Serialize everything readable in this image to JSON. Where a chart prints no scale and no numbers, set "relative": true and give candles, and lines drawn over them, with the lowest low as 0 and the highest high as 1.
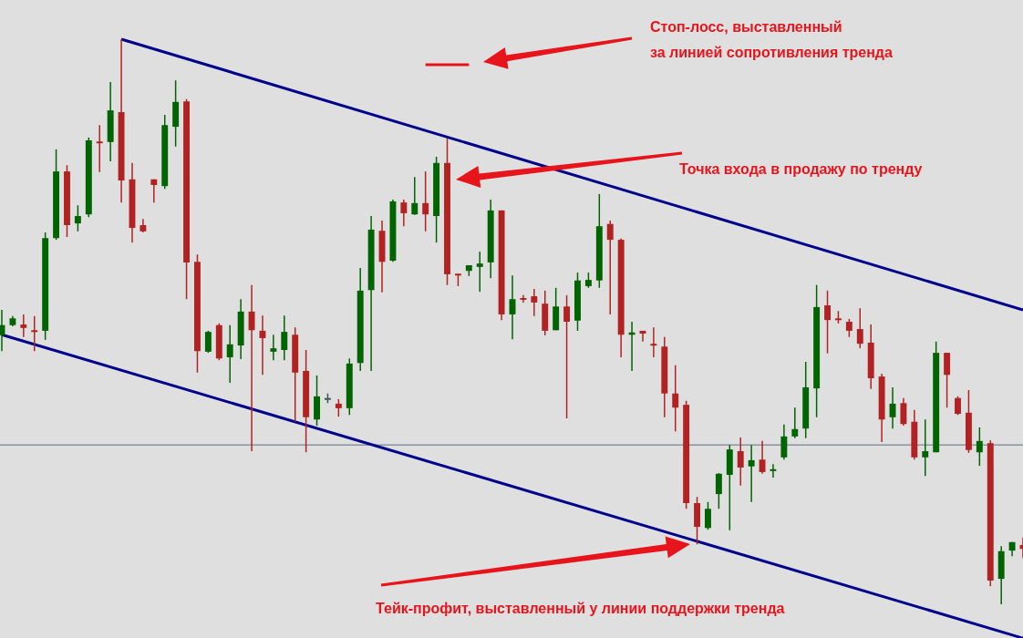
{
  "chart_data": {
    "type": "candlestick",
    "relative": true,
    "legend": false,
    "marker": "none",
    "categories": [
      null,
      null,
      null,
      null,
      null,
      null,
      null,
      null,
      null,
      null,
      null,
      null,
      null,
      null,
      null,
      null,
      null,
      null,
      null,
      null,
      null,
      null,
      null,
      null,
      null,
      null,
      null,
      null,
      null,
      null,
      null,
      null,
      null,
      null,
      null,
      null,
      null,
      null,
      null,
      null,
      null,
      null,
      null,
      null,
      null,
      null,
      null,
      null,
      null,
      null,
      null,
      null,
      null,
      null,
      null,
      null,
      null,
      null,
      null,
      null,
      null,
      null,
      null,
      null,
      null,
      null,
      null,
      null,
      null,
      null,
      null,
      null,
      null,
      null,
      null,
      null,
      null,
      null,
      null,
      null,
      null,
      null,
      null,
      null,
      null,
      null,
      null,
      null,
      null,
      null,
      null,
      null,
      null,
      null,
      null
    ],
    "ohlc": [
      [
        0.476,
        0.521,
        0.448,
        0.494
      ],
      [
        0.494,
        0.51,
        0.492,
        0.506
      ],
      [
        0.495,
        0.513,
        0.473,
        0.489
      ],
      [
        0.485,
        0.51,
        0.448,
        0.482
      ],
      [
        0.484,
        0.658,
        0.468,
        0.648
      ],
      [
        0.648,
        0.805,
        0.645,
        0.766
      ],
      [
        0.766,
        0.777,
        0.65,
        0.671
      ],
      [
        0.674,
        0.706,
        0.66,
        0.687
      ],
      [
        0.69,
        0.826,
        0.685,
        0.821
      ],
      [
        0.819,
        0.848,
        0.765,
        0.816
      ],
      [
        0.818,
        0.924,
        0.784,
        0.874
      ],
      [
        0.871,
        1,
        0.711,
        0.75
      ],
      [
        0.752,
        0.781,
        0.64,
        0.666
      ],
      [
        0.671,
        0.682,
        0.658,
        0.66
      ],
      [
        0.752,
        0.752,
        0.711,
        0.742
      ],
      [
        0.74,
        0.866,
        0.735,
        0.848
      ],
      [
        0.845,
        0.927,
        0.81,
        0.889
      ],
      [
        0.89,
        0.894,
        0.54,
        0.605
      ],
      [
        0.606,
        0.619,
        0.41,
        0.448
      ],
      [
        0.447,
        0.484,
        0.445,
        0.482
      ],
      [
        0.494,
        0.497,
        0.432,
        0.435
      ],
      [
        0.437,
        0.494,
        0.392,
        0.46
      ],
      [
        0.458,
        0.54,
        0.434,
        0.518
      ],
      [
        0.518,
        0.565,
        0.271,
        0.485
      ],
      [
        0.484,
        0.511,
        0.406,
        0.471
      ],
      [
        0.447,
        0.477,
        0.432,
        0.453
      ],
      [
        0.45,
        0.511,
        0.432,
        0.482
      ],
      [
        0.477,
        0.49,
        0.323,
        0.41
      ],
      [
        0.413,
        0.45,
        0.269,
        0.331
      ],
      [
        0.327,
        0.405,
        0.316,
        0.368
      ],
      [
        0.363,
        0.373,
        0.356,
        0.365
      ],
      [
        0.355,
        0.363,
        0.332,
        0.347
      ],
      [
        0.347,
        0.435,
        0.335,
        0.426
      ],
      [
        0.427,
        0.595,
        0.413,
        0.555
      ],
      [
        0.556,
        0.687,
        0.413,
        0.663
      ],
      [
        0.661,
        0.679,
        0.552,
        0.606
      ],
      [
        0.608,
        0.716,
        0.606,
        0.713
      ],
      [
        0.711,
        0.716,
        0.669,
        0.692
      ],
      [
        0.69,
        0.756,
        0.689,
        0.71
      ],
      [
        0.71,
        0.766,
        0.66,
        0.69
      ],
      [
        0.687,
        0.792,
        0.64,
        0.781
      ],
      [
        0.781,
        0.824,
        0.565,
        0.584
      ],
      [
        0.585,
        0.585,
        0.563,
        0.582
      ],
      [
        0.59,
        0.6,
        0.581,
        0.6
      ],
      [
        0.597,
        0.624,
        0.553,
        0.603
      ],
      [
        0.605,
        0.716,
        0.577,
        0.697
      ],
      [
        0.697,
        0.697,
        0.503,
        0.513
      ],
      [
        0.513,
        0.582,
        0.469,
        0.54
      ],
      [
        0.542,
        0.547,
        0.534,
        0.539
      ],
      [
        0.545,
        0.558,
        0.51,
        0.534
      ],
      [
        0.532,
        0.555,
        0.476,
        0.484
      ],
      [
        0.485,
        0.56,
        0.485,
        0.527
      ],
      [
        0.527,
        0.547,
        0.329,
        0.5
      ],
      [
        0.502,
        0.587,
        0.484,
        0.573
      ],
      [
        0.563,
        0.587,
        0.56,
        0.574
      ],
      [
        0.573,
        0.726,
        0.56,
        0.669
      ],
      [
        0.673,
        0.679,
        0.513,
        0.645
      ],
      [
        0.645,
        0.647,
        0.437,
        0.477
      ],
      [
        0.477,
        0.5,
        0.413,
        0.481
      ],
      [
        0.484,
        0.484,
        0.465,
        0.479
      ],
      [
        0.461,
        0.49,
        0.437,
        0.458
      ],
      [
        0.456,
        0.473,
        0.331,
        0.373
      ],
      [
        0.373,
        0.423,
        0.306,
        0.348
      ],
      [
        0.353,
        0.36,
        0.169,
        0.179
      ],
      [
        0.179,
        0.19,
        0.106,
        0.137
      ],
      [
        0.135,
        0.181,
        0.132,
        0.169
      ],
      [
        0.195,
        0.232,
        0.169,
        0.231
      ],
      [
        0.229,
        0.282,
        0.131,
        0.274
      ],
      [
        0.271,
        0.295,
        0.21,
        0.242
      ],
      [
        0.244,
        0.282,
        0.181,
        0.255
      ],
      [
        0.256,
        0.289,
        0.231,
        0.234
      ],
      [
        0.237,
        0.248,
        0.224,
        0.239
      ],
      [
        0.26,
        0.318,
        0.256,
        0.297
      ],
      [
        0.297,
        0.348,
        0.294,
        0.31
      ],
      [
        0.311,
        0.429,
        0.294,
        0.384
      ],
      [
        0.382,
        0.565,
        0.331,
        0.526
      ],
      [
        0.529,
        0.555,
        0.444,
        0.503
      ],
      [
        0.506,
        0.519,
        0.497,
        0.503
      ],
      [
        0.5,
        0.505,
        0.473,
        0.484
      ],
      [
        0.487,
        0.524,
        0.453,
        0.461
      ],
      [
        0.463,
        0.495,
        0.381,
        0.4
      ],
      [
        0.403,
        0.408,
        0.287,
        0.327
      ],
      [
        0.331,
        0.384,
        0.311,
        0.355
      ],
      [
        0.356,
        0.365,
        0.316,
        0.319
      ],
      [
        0.323,
        0.344,
        0.256,
        0.26
      ],
      [
        0.26,
        0.327,
        0.227,
        0.271
      ],
      [
        0.269,
        0.465,
        0.269,
        0.445
      ],
      [
        0.445,
        0.445,
        0.348,
        0.406
      ],
      [
        0.365,
        0.368,
        0.335,
        0.337
      ],
      [
        0.339,
        0.379,
        0.268,
        0.273
      ],
      [
        0.269,
        0.313,
        0.245,
        0.289
      ],
      [
        0.285,
        0.29,
        0.032,
        0.042
      ],
      [
        0.045,
        0.103,
        0,
        0.094
      ],
      [
        0.095,
        0.11,
        0.085,
        0.11
      ],
      [
        0.105,
        0.118,
        0.082,
        0.098
      ]
    ],
    "colors": [
      "#006400",
      "#006400",
      "#b22222",
      "#b22222",
      "#006400",
      "#006400",
      "#b22222",
      "#006400",
      "#006400",
      "#b22222",
      "#006400",
      "#b22222",
      "#b22222",
      "#b22222",
      "#b22222",
      "#006400",
      "#006400",
      "#b22222",
      "#b22222",
      "#006400",
      "#b22222",
      "#006400",
      "#006400",
      "#b22222",
      "#b22222",
      "#006400",
      "#006400",
      "#b22222",
      "#b22222",
      "#006400",
      "#44545a",
      "#b22222",
      "#006400",
      "#006400",
      "#006400",
      "#b22222",
      "#006400",
      "#b22222",
      "#006400",
      "#b22222",
      "#006400",
      "#b22222",
      "#b22222",
      "#006400",
      "#006400",
      "#006400",
      "#b22222",
      "#006400",
      "#b22222",
      "#b22222",
      "#b22222",
      "#006400",
      "#b22222",
      "#006400",
      "#006400",
      "#006400",
      "#b22222",
      "#b22222",
      "#006400",
      "#b22222",
      "#b22222",
      "#b22222",
      "#b22222",
      "#b22222",
      "#b22222",
      "#006400",
      "#006400",
      "#006400",
      "#b22222",
      "#006400",
      "#b22222",
      "#006400",
      "#006400",
      "#006400",
      "#006400",
      "#006400",
      "#b22222",
      "#b22222",
      "#b22222",
      "#b22222",
      "#b22222",
      "#b22222",
      "#006400",
      "#b22222",
      "#b22222",
      "#006400",
      "#006400",
      "#b22222",
      "#b22222",
      "#b22222",
      "#006400",
      "#b22222",
      "#006400",
      "#006400",
      "#b22222"
    ],
    "series": [
      {
        "type": "line",
        "color": "#00008b",
        "values": [
          null,
          null,
          null,
          null,
          null,
          null,
          null,
          null,
          null,
          null,
          null,
          1,
          null,
          null,
          null,
          null,
          null,
          null,
          null,
          null,
          null,
          null,
          null,
          null,
          null,
          null,
          null,
          null,
          null,
          null,
          null,
          null,
          null,
          null,
          null,
          null,
          null,
          null,
          null,
          null,
          null,
          null,
          null,
          null,
          null,
          null,
          null,
          null,
          null,
          null,
          null,
          null,
          null,
          null,
          null,
          null,
          null,
          null,
          null,
          null,
          null,
          null,
          null,
          null,
          null,
          null,
          null,
          null,
          null,
          null,
          null,
          null,
          null,
          null,
          null,
          null,
          null,
          null,
          null,
          null,
          null,
          null,
          null,
          null,
          null,
          null,
          null,
          null,
          null,
          null,
          null,
          null,
          null,
          null,
          0.521
        ]
      },
      {
        "type": "line",
        "color": "#00008b",
        "values": [
          0.477,
          null,
          null,
          null,
          null,
          null,
          null,
          null,
          null,
          null,
          null,
          null,
          null,
          null,
          null,
          null,
          null,
          null,
          null,
          null,
          null,
          null,
          null,
          null,
          null,
          null,
          null,
          null,
          null,
          null,
          null,
          null,
          null,
          null,
          null,
          null,
          null,
          null,
          null,
          null,
          null,
          null,
          null,
          null,
          null,
          null,
          null,
          null,
          null,
          null,
          null,
          null,
          null,
          null,
          null,
          null,
          null,
          null,
          null,
          null,
          null,
          null,
          null,
          null,
          null,
          null,
          null,
          null,
          null,
          null,
          null,
          null,
          null,
          null,
          null,
          null,
          null,
          null,
          null,
          null,
          null,
          null,
          null,
          null,
          null,
          null,
          null,
          null,
          null,
          null,
          null,
          null,
          null,
          null,
          -0.06
        ]
      },
      {
        "type": "line",
        "color": "#e8141c",
        "values": [
          null,
          null,
          null,
          null,
          null,
          null,
          null,
          null,
          null,
          null,
          null,
          null,
          null,
          null,
          null,
          null,
          null,
          null,
          null,
          null,
          null,
          null,
          null,
          null,
          null,
          null,
          null,
          null,
          null,
          null,
          null,
          null,
          null,
          null,
          null,
          null,
          null,
          null,
          null,
          0.955,
          null,
          null,
          null,
          0.955,
          null,
          null,
          null,
          null,
          null,
          null,
          null,
          null,
          null,
          null,
          null,
          null,
          null,
          null,
          null,
          null,
          null,
          null,
          null,
          null,
          null,
          null,
          null,
          null,
          null,
          null,
          null,
          null,
          null,
          null,
          null,
          null,
          null,
          null,
          null,
          null,
          null,
          null,
          null,
          null,
          null,
          null,
          null,
          null,
          null,
          null,
          null,
          null,
          null,
          null,
          null
        ]
      }
    ],
    "ref_lines": [
      {
        "axis": "y",
        "value": 0.282,
        "color": "#8c96a0"
      }
    ],
    "annotations": [
      "Стоп-лосс, выставленный\nза линией сопротивления тренда",
      "Точка входа в продажу по тренду",
      "Тейк-профит, выставленный у линии поддержки тренда"
    ]
  }
}
